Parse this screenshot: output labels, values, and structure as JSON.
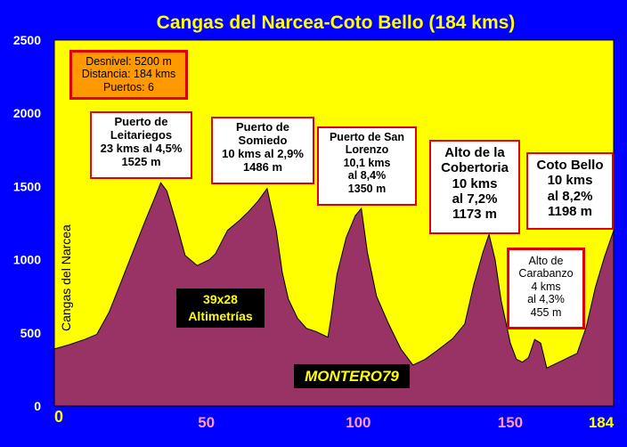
{
  "title": "Cangas del Narcea-Coto Bello (184 kms)",
  "colors": {
    "background": "#0000ff",
    "plot_area": "#ffff00",
    "profile_fill": "#993366",
    "title_text": "#ffff00",
    "accent_red": "#e00000",
    "info_box": "#ff9900",
    "watermark_text": "#ffff00"
  },
  "info_box": {
    "lines": [
      "Desnivel: 5200 m",
      "Distancia: 184 kms",
      "Puertos: 6"
    ]
  },
  "start_label": "Cangas del Narcea",
  "stamps": {
    "altimetrias": [
      "39x28",
      "Altimetrías"
    ],
    "author": "MONTERO79"
  },
  "climbs": [
    {
      "lines": [
        "Puerto de",
        "Leitariegos",
        "23 kms  al 4,5%",
        "1525 m"
      ]
    },
    {
      "lines": [
        "Puerto de",
        "Somiedo",
        "10 kms  al 2,9%",
        "1486 m"
      ]
    },
    {
      "lines": [
        "Puerto de San",
        "Lorenzo",
        "10,1 kms",
        "al 8,4%",
        "1350 m"
      ]
    },
    {
      "lines": [
        "Alto  de la",
        "Cobertoria",
        "10 kms",
        "al 7,2%",
        "1173 m"
      ]
    },
    {
      "lines": [
        "Coto Bello",
        "10 kms",
        "al 8,2%",
        "1198  m"
      ]
    },
    {
      "lines": [
        "Alto de",
        "Carabanzo",
        "4 kms",
        "al 4,3%",
        "455 m"
      ]
    }
  ],
  "chart_data": {
    "type": "area",
    "title": "Cangas del Narcea-Coto Bello (184 kms)",
    "xlabel": "",
    "ylabel": "",
    "xlim": [
      0,
      184
    ],
    "ylim": [
      0,
      2500
    ],
    "x_ticks": [
      "0",
      "50",
      "100",
      "150",
      "184"
    ],
    "y_ticks": [
      "0",
      "500",
      "1000",
      "1500",
      "2000",
      "2500"
    ],
    "grid": false,
    "series": [
      {
        "x": [
          0,
          5,
          10,
          14,
          18,
          22,
          26,
          30,
          33,
          35,
          37,
          40,
          43,
          47,
          51,
          53,
          57,
          61,
          64,
          67,
          70,
          73,
          75,
          77,
          80,
          83,
          86,
          90,
          91,
          93,
          96,
          99,
          101,
          103,
          106,
          110,
          114,
          118,
          122,
          126,
          131,
          135,
          138,
          141,
          143,
          145,
          147,
          150,
          152,
          154,
          156,
          158,
          160,
          162,
          165,
          168,
          172,
          175,
          178,
          181,
          184
        ],
        "y": [
          390,
          420,
          455,
          490,
          640,
          850,
          1060,
          1270,
          1420,
          1525,
          1470,
          1260,
          1030,
          960,
          1000,
          1040,
          1200,
          1270,
          1330,
          1400,
          1486,
          1200,
          910,
          730,
          600,
          530,
          510,
          470,
          600,
          900,
          1150,
          1300,
          1350,
          1050,
          750,
          560,
          390,
          280,
          320,
          380,
          460,
          560,
          830,
          1050,
          1173,
          1000,
          720,
          430,
          320,
          300,
          330,
          455,
          430,
          260,
          290,
          320,
          360,
          540,
          810,
          1020,
          1198
        ]
      }
    ]
  }
}
